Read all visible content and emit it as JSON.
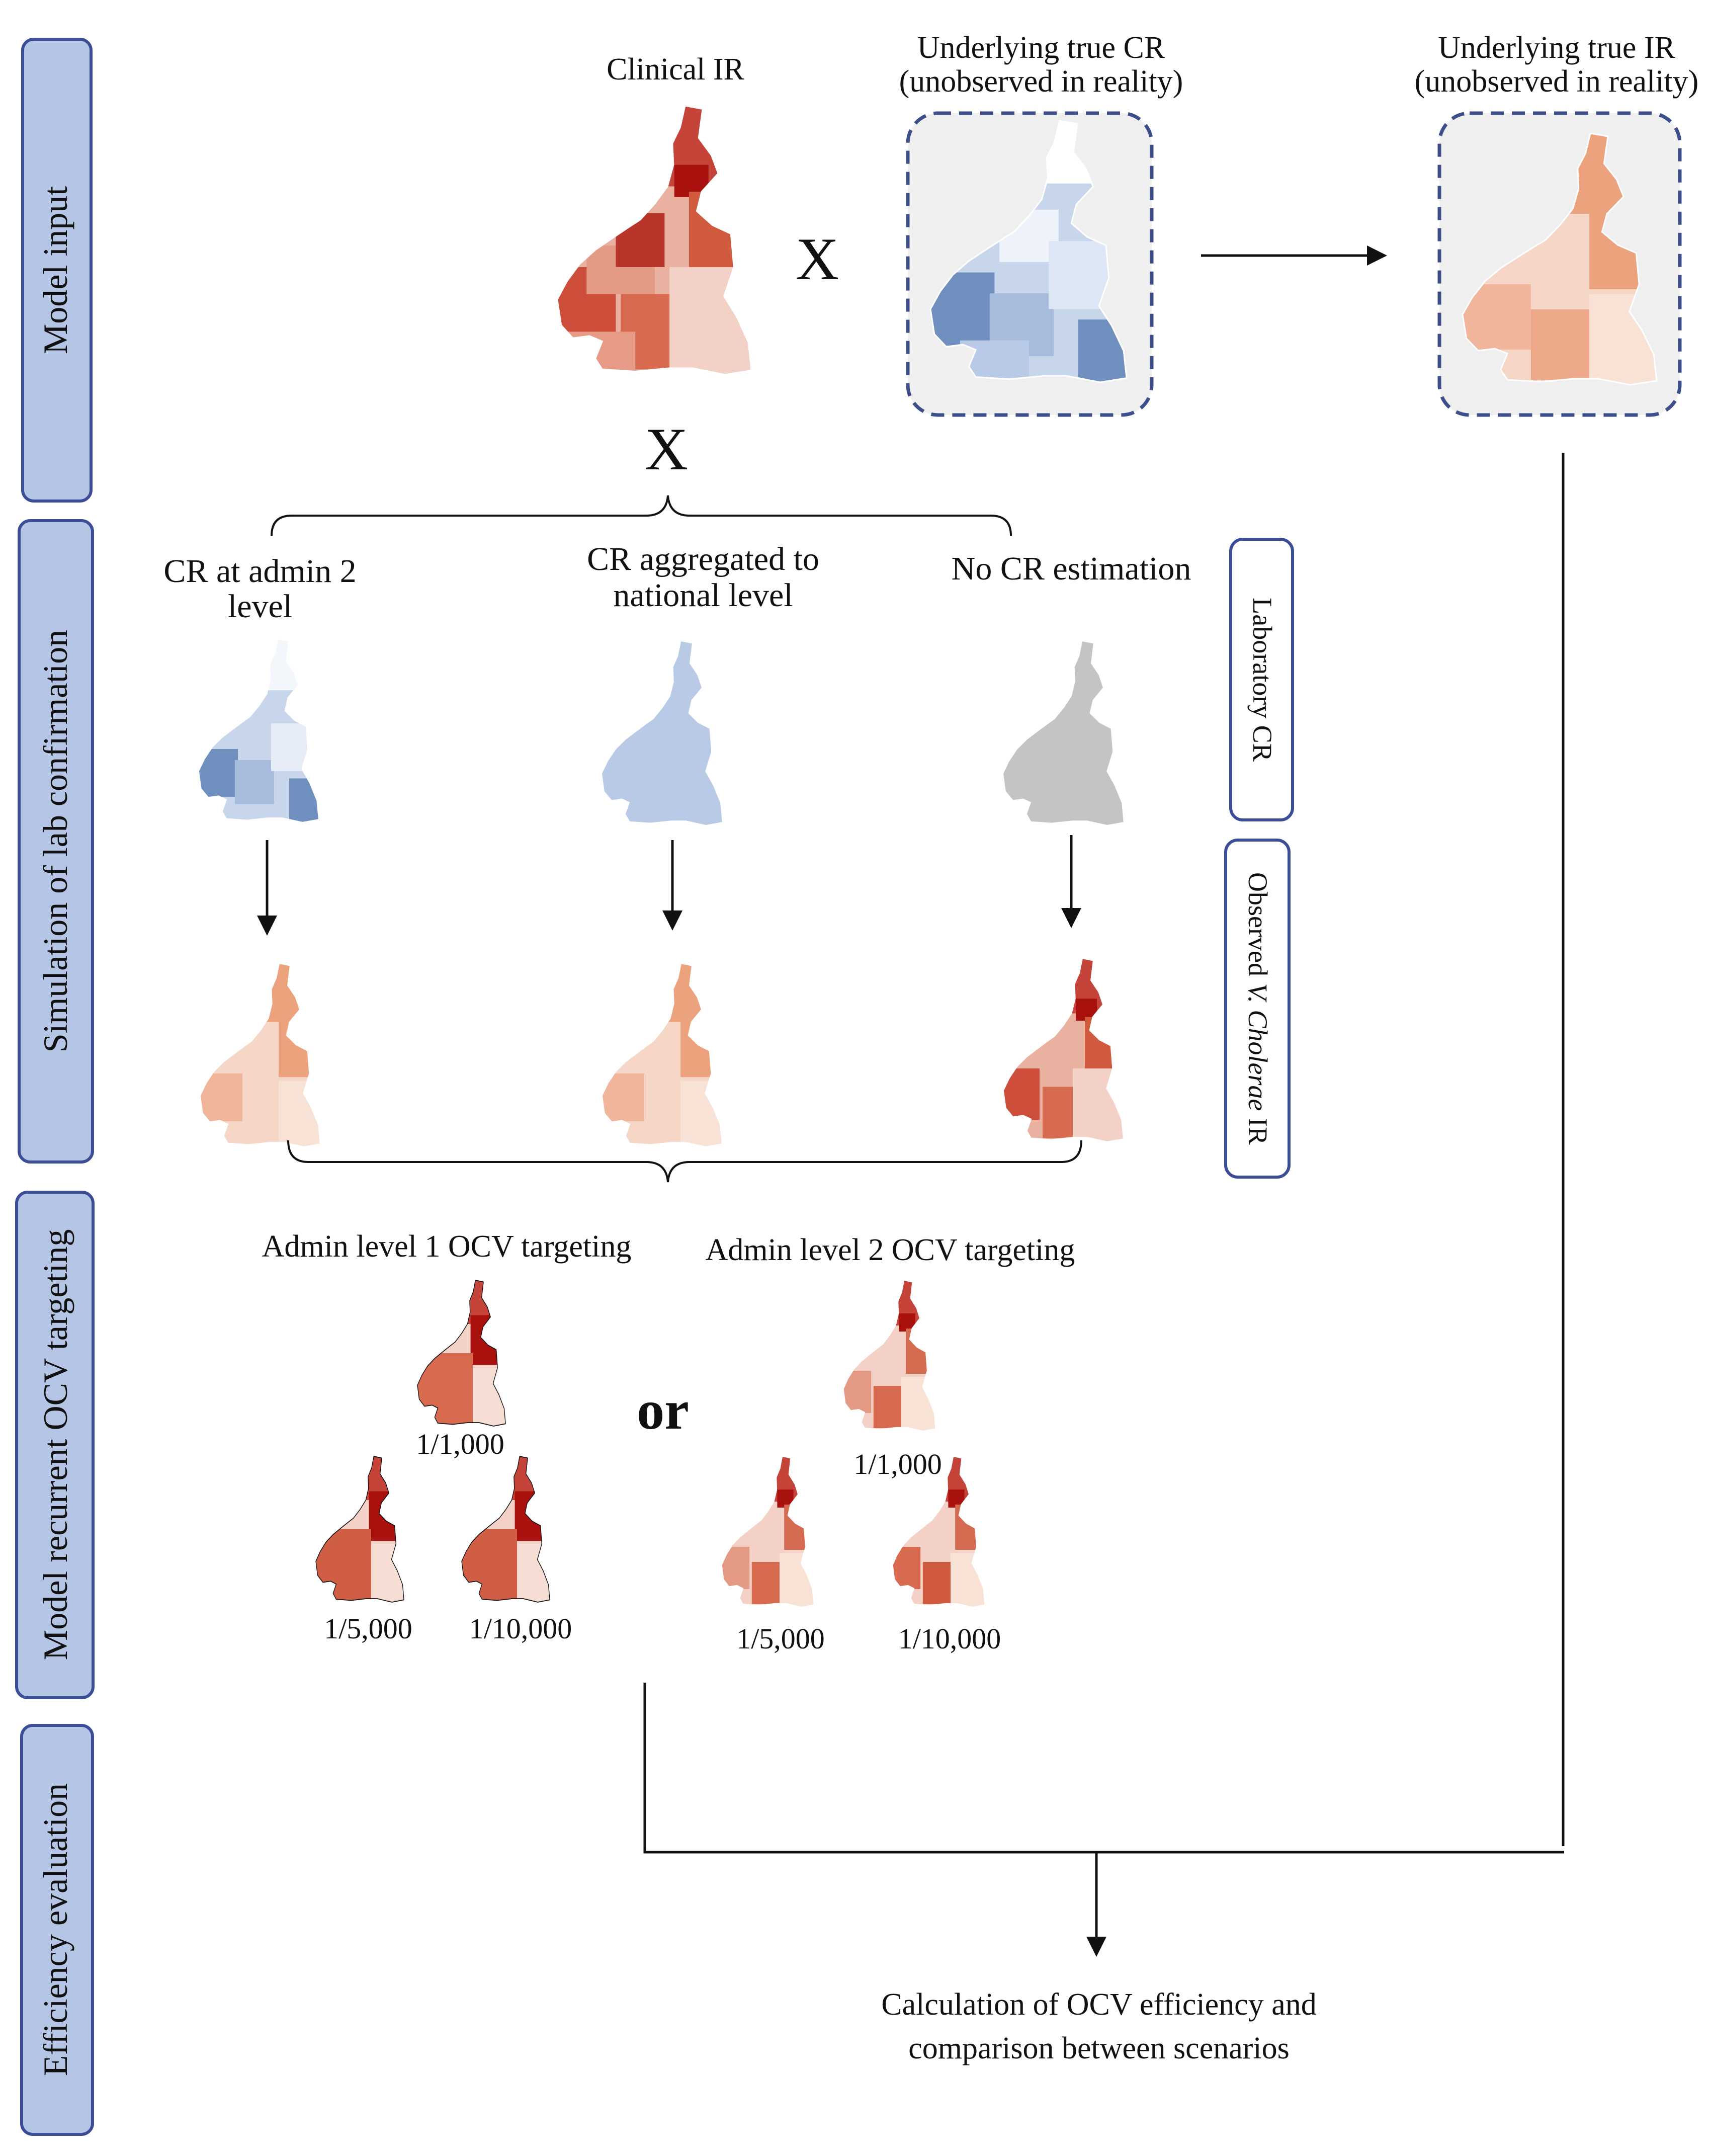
{
  "side_panels": [
    {
      "label": "Model input"
    },
    {
      "label": "Simulation of lab confirmation"
    },
    {
      "label": "Model recurrent OCV targeting"
    },
    {
      "label": "Efficiency evaluation"
    }
  ],
  "input": {
    "clinical_ir": "Clinical IR",
    "true_cr_line1": "Underlying true CR",
    "true_cr_line2": "(unobserved in reality)",
    "true_ir_line1": "Underlying true IR",
    "true_ir_line2": "(unobserved in reality)",
    "multiply_symbol": "X"
  },
  "scenarios": {
    "admin2_line1": "CR at admin 2",
    "admin2_line2": "level",
    "national_line1": "CR aggregated to",
    "national_line2": "national level",
    "none": "No CR estimation"
  },
  "side_tabs": {
    "lab_cr": "Laboratory CR",
    "observed_prefix": "Observed ",
    "observed_species": "V. Cholerae",
    "observed_suffix": " IR"
  },
  "targeting": {
    "admin1_title": "Admin level 1 OCV targeting",
    "admin2_title": "Admin level 2 OCV targeting",
    "or": "or",
    "scales": [
      "1/1,000",
      "1/5,000",
      "1/10,000"
    ]
  },
  "evaluation": {
    "line1": "Calculation of OCV efficiency and",
    "line2": "comparison between scenarios"
  },
  "colors": {
    "red_dark": "#b2150f",
    "red_mid": "#d3553a",
    "red_light": "#f0c5b4",
    "orange_mid": "#eca27c",
    "orange_light": "#f6d6c6",
    "blue_dark": "#6f8fbf",
    "blue_light": "#b8cae6",
    "gray": "#c4c4c4",
    "panel_fill": "#b5c5e6",
    "panel_border": "#3a4d96"
  }
}
